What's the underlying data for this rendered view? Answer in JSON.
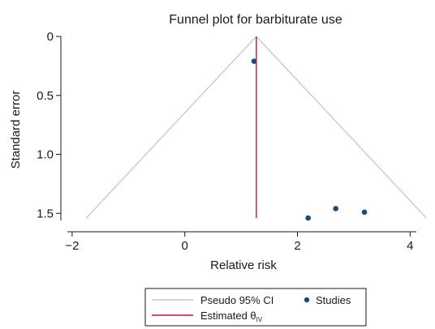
{
  "chart_data": {
    "type": "scatter",
    "title": "Funnel plot for barbiturate use",
    "xlabel": "Relative risk",
    "ylabel": "Standard error",
    "xlim": [
      -2.2,
      4.5
    ],
    "ylim": [
      0,
      1.56
    ],
    "y_inverted": true,
    "grid": false,
    "x_ticks": [
      {
        "value": -2,
        "label": "−2"
      },
      {
        "value": 0,
        "label": "0"
      },
      {
        "value": 2,
        "label": "2"
      },
      {
        "value": 4,
        "label": "4"
      }
    ],
    "y_ticks": [
      {
        "value": 0,
        "label": "0"
      },
      {
        "value": 0.5,
        "label": "0.5"
      },
      {
        "value": 1.0,
        "label": "1.0"
      },
      {
        "value": 1.5,
        "label": "1.5"
      }
    ],
    "estimate": 1.27,
    "ci_lines": [
      {
        "x": [
          1.27,
          -1.75
        ],
        "y": [
          0,
          1.54
        ]
      },
      {
        "x": [
          1.27,
          4.29
        ],
        "y": [
          0,
          1.54
        ]
      }
    ],
    "series": [
      {
        "name": "Studies",
        "x": [
          1.23,
          2.19,
          2.68,
          3.19
        ],
        "y": [
          0.21,
          1.54,
          1.46,
          1.49
        ]
      }
    ],
    "legend": {
      "position": "bottom",
      "items": [
        {
          "label": "Pseudo 95% CI",
          "kind": "line",
          "color": "#c8c8c8"
        },
        {
          "label": "Studies",
          "kind": "marker",
          "color": "#1a4a7a"
        },
        {
          "label": "Estimated θ",
          "sub": "IV",
          "kind": "line",
          "color": "#c8102e"
        }
      ]
    },
    "colors": {
      "ci": "#c8c8c8",
      "estimate": "#c8102e",
      "marker": "#1a4a7a",
      "axis": "#1a1a1a"
    }
  }
}
